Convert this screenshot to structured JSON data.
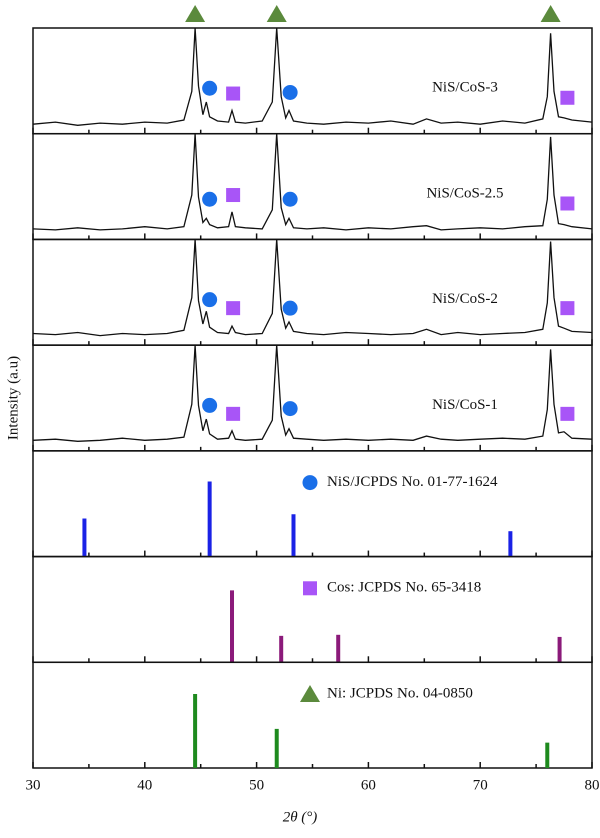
{
  "chart_data": {
    "xlim": [
      30,
      80
    ],
    "xticks": [
      30,
      40,
      50,
      60,
      70,
      80
    ],
    "minor_xticks": [
      35,
      45,
      55,
      65,
      75
    ],
    "xlabel": "2θ (°)",
    "ylabel": "Intensity (a.u)",
    "x": [
      30,
      32,
      34,
      36,
      38,
      40,
      42,
      43.5,
      44.2,
      44.5,
      44.8,
      45.2,
      45.5,
      45.8,
      46.5,
      47.5,
      47.8,
      48.1,
      49,
      50.5,
      51.4,
      51.8,
      52.2,
      52.6,
      52.9,
      53.3,
      54.5,
      56,
      58,
      60,
      62,
      64,
      65.2,
      66.5,
      68,
      70,
      72,
      74,
      75.6,
      76.0,
      76.3,
      76.6,
      77.0,
      77.5,
      78.2,
      80
    ],
    "top_markers": {
      "symbol": "triangle",
      "color": "#5b8a3c",
      "x": [
        44.5,
        51.8,
        76.3
      ]
    },
    "panels": [
      {
        "type": "line",
        "name": "NiS/CoS-3",
        "color": "#111111",
        "ylim": [
          0,
          100
        ],
        "values": [
          9,
          11,
          8,
          10,
          9,
          11,
          10,
          13,
          40,
          100,
          45,
          18,
          30,
          16,
          12,
          11,
          22,
          11,
          10,
          12,
          30,
          100,
          35,
          15,
          22,
          12,
          10,
          9,
          11,
          10,
          12,
          9,
          14,
          10,
          11,
          9,
          12,
          10,
          14,
          35,
          95,
          40,
          16,
          15,
          13,
          11
        ],
        "annotations": [
          {
            "symbol": "circle",
            "x": 45.8,
            "y": 43
          },
          {
            "symbol": "square",
            "x": 47.9,
            "y": 38
          },
          {
            "symbol": "circle",
            "x": 53.0,
            "y": 39
          },
          {
            "symbol": "square",
            "x": 77.8,
            "y": 34
          }
        ]
      },
      {
        "type": "line",
        "name": "NiS/CoS-2.5",
        "color": "#111111",
        "ylim": [
          0,
          100
        ],
        "values": [
          10,
          9,
          11,
          9,
          10,
          12,
          10,
          12,
          42,
          100,
          40,
          16,
          20,
          14,
          11,
          12,
          26,
          12,
          11,
          10,
          28,
          100,
          30,
          14,
          20,
          11,
          10,
          11,
          9,
          11,
          10,
          12,
          13,
          9,
          10,
          11,
          10,
          12,
          13,
          38,
          97,
          42,
          15,
          14,
          12,
          10
        ],
        "annotations": [
          {
            "symbol": "circle",
            "x": 45.8,
            "y": 38
          },
          {
            "symbol": "square",
            "x": 47.9,
            "y": 42
          },
          {
            "symbol": "circle",
            "x": 53.0,
            "y": 38
          },
          {
            "symbol": "square",
            "x": 77.8,
            "y": 34
          }
        ]
      },
      {
        "type": "line",
        "name": "NiS/CoS-2",
        "color": "#111111",
        "ylim": [
          0,
          100
        ],
        "values": [
          11,
          10,
          12,
          9,
          11,
          10,
          11,
          14,
          45,
          100,
          42,
          20,
          32,
          17,
          12,
          11,
          18,
          12,
          10,
          11,
          30,
          100,
          34,
          16,
          22,
          13,
          11,
          10,
          12,
          11,
          10,
          11,
          15,
          10,
          12,
          10,
          11,
          12,
          15,
          40,
          98,
          45,
          18,
          16,
          13,
          12
        ],
        "annotations": [
          {
            "symbol": "circle",
            "x": 45.8,
            "y": 43
          },
          {
            "symbol": "square",
            "x": 47.9,
            "y": 35
          },
          {
            "symbol": "circle",
            "x": 53.0,
            "y": 35
          },
          {
            "symbol": "square",
            "x": 77.8,
            "y": 35
          }
        ]
      },
      {
        "type": "line",
        "name": "NiS/CoS-1",
        "color": "#111111",
        "ylim": [
          0,
          100
        ],
        "values": [
          10,
          11,
          9,
          10,
          12,
          10,
          11,
          13,
          44,
          100,
          43,
          19,
          30,
          16,
          11,
          12,
          19,
          11,
          10,
          11,
          29,
          100,
          33,
          15,
          21,
          12,
          11,
          10,
          11,
          10,
          11,
          10,
          14,
          11,
          10,
          11,
          12,
          11,
          14,
          39,
          96,
          44,
          17,
          18,
          12,
          11
        ],
        "annotations": [
          {
            "symbol": "circle",
            "x": 45.8,
            "y": 43
          },
          {
            "symbol": "square",
            "x": 47.9,
            "y": 35
          },
          {
            "symbol": "circle",
            "x": 53.0,
            "y": 40
          },
          {
            "symbol": "square",
            "x": 77.8,
            "y": 35
          }
        ]
      },
      {
        "type": "stem",
        "name": "NiS/JCPDS No. 01-77-1624",
        "symbol": "circle",
        "symbol_color": "#1a6fe8",
        "color": "#1a22e6",
        "ylim": [
          0,
          100
        ],
        "x": [
          34.6,
          45.8,
          53.3,
          72.7
        ],
        "values": [
          36,
          71,
          40,
          24
        ]
      },
      {
        "type": "stem",
        "name": "Cos: JCPDS No. 65-3418",
        "symbol": "square",
        "symbol_color": "#a855f7",
        "color": "#8b1a7a",
        "ylim": [
          0,
          100
        ],
        "x": [
          47.8,
          52.2,
          57.3,
          77.1
        ],
        "values": [
          68,
          25,
          26,
          24
        ]
      },
      {
        "type": "stem",
        "name": "Ni: JCPDS No. 04-0850",
        "symbol": "triangle",
        "symbol_color": "#5b8a3c",
        "color": "#1e8a1e",
        "ylim": [
          0,
          100
        ],
        "x": [
          44.5,
          51.8,
          76.0
        ],
        "values": [
          70,
          37,
          24
        ]
      }
    ]
  }
}
